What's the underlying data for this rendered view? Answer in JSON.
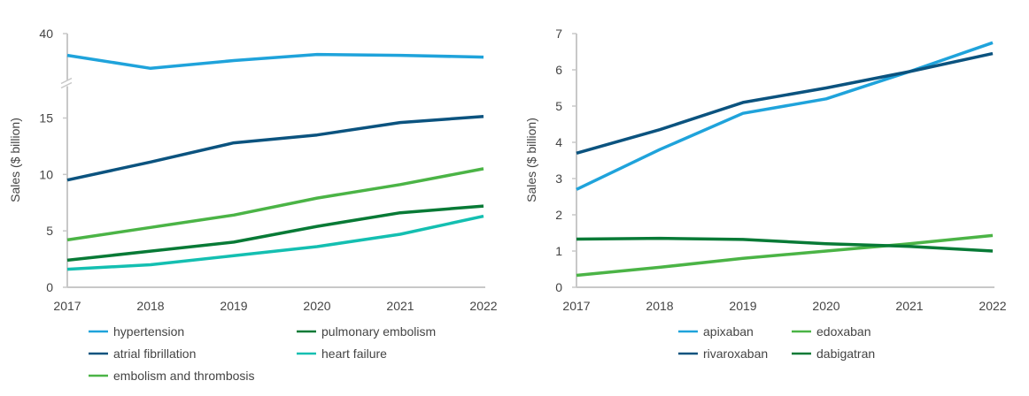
{
  "chart_data": [
    {
      "type": "line",
      "x": [
        "2017",
        "2018",
        "2019",
        "2020",
        "2021",
        "2022"
      ],
      "ylabel": "Sales ($ billion)",
      "ylim": [
        0,
        40
      ],
      "yticks": [
        "0",
        "5",
        "10",
        "15",
        "40"
      ],
      "y_axis_break": true,
      "grid": false,
      "legend_position": "bottom",
      "series": [
        {
          "name": "hypertension",
          "color": "#1fa3db",
          "values": [
            37.5,
            36.0,
            36.9,
            37.6,
            37.5,
            37.3
          ]
        },
        {
          "name": "atrial fibrillation",
          "color": "#0b537f",
          "values": [
            9.5,
            11.1,
            12.8,
            13.5,
            14.6,
            15.9
          ]
        },
        {
          "name": "embolism and thrombosis",
          "color": "#4bb446",
          "values": [
            4.2,
            5.3,
            6.4,
            7.9,
            9.1,
            10.5
          ]
        },
        {
          "name": "pulmonary embolism",
          "color": "#087a36",
          "values": [
            2.4,
            3.2,
            4.0,
            5.4,
            6.6,
            7.2
          ]
        },
        {
          "name": "heart failure",
          "color": "#14bfb1",
          "values": [
            1.6,
            2.0,
            2.8,
            3.6,
            4.7,
            6.3
          ]
        }
      ]
    },
    {
      "type": "line",
      "x": [
        "2017",
        "2018",
        "2019",
        "2020",
        "2021",
        "2022"
      ],
      "ylabel": "Sales ($ billion)",
      "ylim": [
        0,
        7
      ],
      "yticks": [
        "0",
        "1",
        "2",
        "3",
        "4",
        "5",
        "6",
        "7"
      ],
      "grid": false,
      "legend_position": "bottom",
      "series": [
        {
          "name": "apixaban",
          "color": "#1fa3db",
          "values": [
            2.7,
            3.8,
            4.8,
            5.2,
            5.95,
            6.75
          ]
        },
        {
          "name": "rivaroxaban",
          "color": "#0b537f",
          "values": [
            3.7,
            4.35,
            5.1,
            5.5,
            5.95,
            6.45
          ]
        },
        {
          "name": "edoxaban",
          "color": "#4bb446",
          "values": [
            0.33,
            0.55,
            0.8,
            1.0,
            1.2,
            1.43
          ]
        },
        {
          "name": "dabigatran",
          "color": "#087a36",
          "values": [
            1.33,
            1.35,
            1.32,
            1.2,
            1.13,
            1.0
          ]
        }
      ]
    }
  ]
}
